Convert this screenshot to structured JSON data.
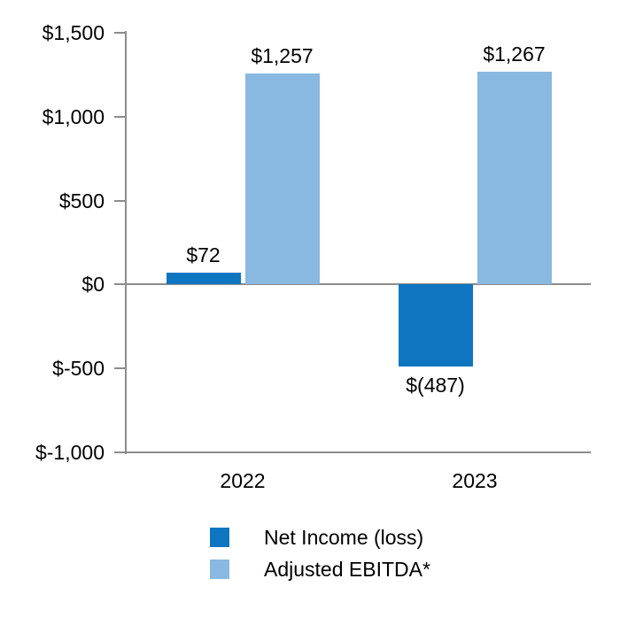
{
  "chart_data": {
    "type": "bar",
    "title": "",
    "xlabel": "",
    "ylabel": "",
    "categories": [
      "2022",
      "2023"
    ],
    "series": [
      {
        "name": "Net Income (loss)",
        "color": "#0e76c1",
        "values": [
          72,
          -487
        ],
        "labels": [
          "$72",
          "$(487)"
        ]
      },
      {
        "name": "Adjusted EBITDA*",
        "color": "#89b8e0",
        "values": [
          1257,
          1267
        ],
        "labels": [
          "$1,257",
          "$1,267"
        ]
      }
    ],
    "ylim": [
      -1000,
      1500
    ],
    "yticks": [
      {
        "value": 1500,
        "label": "$1,500"
      },
      {
        "value": 1000,
        "label": "$1,000"
      },
      {
        "value": 500,
        "label": "$500"
      },
      {
        "value": 0,
        "label": "$0"
      },
      {
        "value": -500,
        "label": "$-500"
      },
      {
        "value": -1000,
        "label": "$-1,000"
      }
    ],
    "grid": false,
    "legend_position": "bottom",
    "axis_color": "#8c8c8c",
    "text_color": "#000000",
    "background_color": "#ffffff"
  }
}
